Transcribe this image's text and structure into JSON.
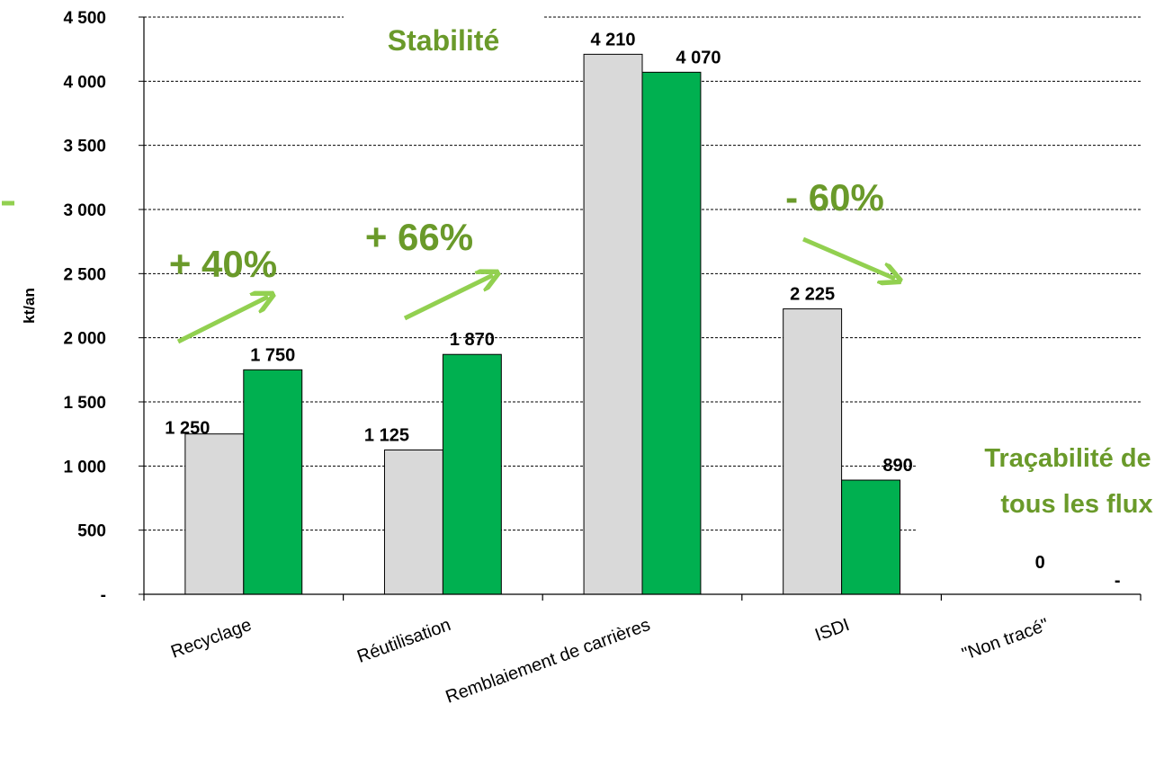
{
  "chart_data": {
    "type": "bar",
    "ylabel": "kt/an",
    "ylim": [
      0,
      4500
    ],
    "ytick_step": 500,
    "yticks": [
      "-",
      "500",
      "1 000",
      "1 500",
      "2 000",
      "2 500",
      "3 000",
      "3 500",
      "4 000",
      "4 500"
    ],
    "grid": true,
    "categories": [
      "Recyclage",
      "Réutilisation",
      "Remblaiement de carrières",
      "ISDI",
      "\"Non tracé\""
    ],
    "series": [
      {
        "values": [
          1250,
          1125,
          4210,
          2225,
          0
        ],
        "labels": [
          "1 250",
          "1 125",
          "4 210",
          "2 225",
          "0"
        ],
        "color": "#d9d9d9"
      },
      {
        "values": [
          1750,
          1870,
          4070,
          890,
          0
        ],
        "labels": [
          "1 750",
          "1 870",
          "4 070",
          "890",
          "-"
        ],
        "color": "#00b050"
      }
    ],
    "annotations": {
      "recyclage_change": "+ 40%",
      "reutilisation_change": "+ 66%",
      "remblaiement_change": "Stabilité",
      "isdi_change": "- 60%",
      "non_trace_line1": "Traçabilité de",
      "non_trace_line2": "tous les flux"
    },
    "annotation_color": "#6a9a2a",
    "arrow_color": "#92d050"
  }
}
